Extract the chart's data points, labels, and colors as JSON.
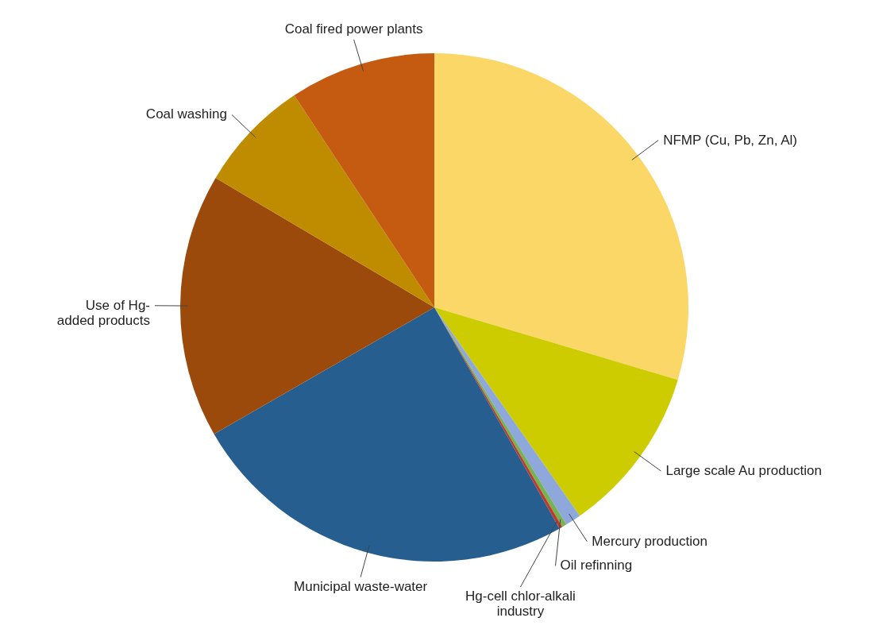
{
  "chart_data": {
    "type": "pie",
    "categories": [
      "NFMP (Cu, Pb, Zn, Al)",
      "Large scale Au production",
      "Mercury production",
      "Oil refinning",
      "Hg-cell chlor-alkali\nindustry",
      "Municipal waste-water",
      "Use of Hg-\nadded products",
      "Coal washing",
      "Coal fired power plants"
    ],
    "values": [
      29.6,
      10.7,
      1.0,
      0.3,
      0.2,
      24.9,
      16.8,
      7.2,
      9.3
    ],
    "colors": [
      "#fad766",
      "#cccc00",
      "#8fa8dc",
      "#77b255",
      "#c0392b",
      "#255e8f",
      "#9b4a0c",
      "#bf8c00",
      "#c55a11"
    ]
  }
}
